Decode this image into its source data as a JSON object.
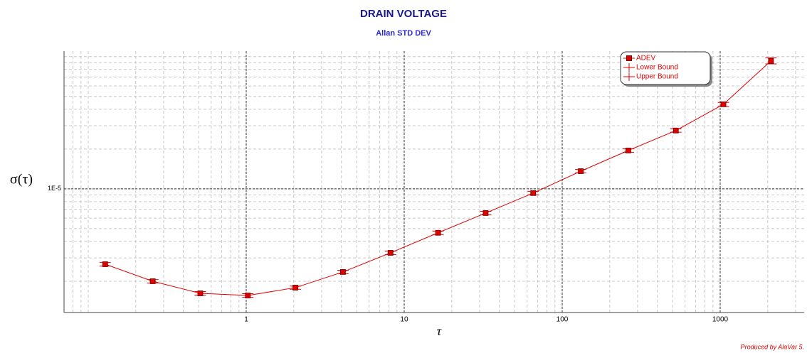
{
  "chart_data": {
    "type": "line",
    "title": "DRAIN VOLTAGE",
    "subtitle": "Allan STD DEV",
    "y_label": "σ(τ)",
    "x_label": "τ",
    "footer": "Produced by AlaVar 5.",
    "x": [
      0.128,
      0.256,
      0.512,
      1.024,
      2.048,
      4.096,
      8.192,
      16.384,
      32.768,
      65.536,
      131.072,
      262.144,
      524.288,
      1048.576,
      2097.152
    ],
    "series": [
      {
        "name": "ADEV",
        "color": "#e00000",
        "values": [
          2.69e-06,
          2e-06,
          1.62e-06,
          1.56e-06,
          1.79e-06,
          2.35e-06,
          3.28e-06,
          4.65e-06,
          6.56e-06,
          9.29e-06,
          1.36e-05,
          1.95e-05,
          2.76e-05,
          4.36e-05,
          9.29e-05
        ]
      },
      {
        "name": "Lower Bound",
        "color": "#e00000",
        "values": [
          2.61e-06,
          1.94e-06,
          1.57e-06,
          1.51e-06,
          1.74e-06,
          2.28e-06,
          3.18e-06,
          4.51e-06,
          6.36e-06,
          9.01e-06,
          1.32e-05,
          1.89e-05,
          2.68e-05,
          4.2e-05,
          8.8e-05
        ]
      },
      {
        "name": "Upper Bound",
        "color": "#e00000",
        "values": [
          2.77e-06,
          2.06e-06,
          1.67e-06,
          1.61e-06,
          1.84e-06,
          2.42e-06,
          3.38e-06,
          4.79e-06,
          6.76e-06,
          9.57e-06,
          1.4e-05,
          2.01e-05,
          2.84e-05,
          4.5e-05,
          9.8e-05
        ]
      }
    ],
    "xlim": [
      0.0703,
      3400
    ],
    "ylim": [
      1.16e-06,
      0.00011
    ],
    "xticks": [
      1,
      10,
      100,
      1000
    ],
    "yticks": [
      {
        "value": 1e-05,
        "label": "1E-5"
      }
    ],
    "xlog": true,
    "ylog": true,
    "grid": true,
    "legend": "upper right"
  }
}
